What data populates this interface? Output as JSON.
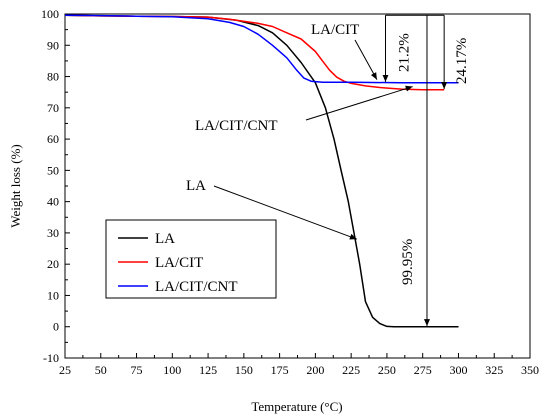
{
  "chart_data": {
    "type": "line",
    "title": "",
    "xlabel": "Temperature (°C)",
    "ylabel": "Weight loss (%)",
    "xlim": [
      25,
      350
    ],
    "ylim": [
      -10,
      100
    ],
    "xticks": [
      25,
      50,
      75,
      100,
      125,
      150,
      175,
      200,
      225,
      250,
      275,
      300,
      325,
      350
    ],
    "yticks": [
      -10,
      0,
      10,
      20,
      30,
      40,
      50,
      60,
      70,
      80,
      90,
      100
    ],
    "grid": false,
    "legend_position": "lower-left",
    "series": [
      {
        "name": "LA",
        "color": "#000000",
        "points": [
          [
            25,
            99.6
          ],
          [
            50,
            99.4
          ],
          [
            75,
            99.3
          ],
          [
            100,
            99.2
          ],
          [
            125,
            99.0
          ],
          [
            145,
            98.0
          ],
          [
            160,
            96.3
          ],
          [
            170,
            94.0
          ],
          [
            180,
            90.0
          ],
          [
            190,
            84.5
          ],
          [
            200,
            78.0
          ],
          [
            207,
            70.0
          ],
          [
            213,
            60.0
          ],
          [
            218,
            50.0
          ],
          [
            223,
            40.0
          ],
          [
            227,
            30.0
          ],
          [
            231,
            20.0
          ],
          [
            235,
            8.0
          ],
          [
            240,
            3.0
          ],
          [
            245,
            1.0
          ],
          [
            250,
            0.1
          ],
          [
            255,
            0.0
          ],
          [
            300,
            0.0
          ]
        ]
      },
      {
        "name": "LA/CIT",
        "color": "#ff0000",
        "points": [
          [
            25,
            99.6
          ],
          [
            50,
            99.4
          ],
          [
            75,
            99.3
          ],
          [
            100,
            99.2
          ],
          [
            125,
            99.0
          ],
          [
            140,
            98.3
          ],
          [
            160,
            97.0
          ],
          [
            170,
            96.0
          ],
          [
            180,
            94.0
          ],
          [
            190,
            92.0
          ],
          [
            200,
            88.0
          ],
          [
            205,
            85.0
          ],
          [
            210,
            82.0
          ],
          [
            215,
            79.8
          ],
          [
            220,
            78.5
          ],
          [
            225,
            77.8
          ],
          [
            235,
            77.0
          ],
          [
            245,
            76.5
          ],
          [
            260,
            76.0
          ],
          [
            275,
            75.8
          ],
          [
            290,
            75.8
          ]
        ]
      },
      {
        "name": "LA/CIT/CNT",
        "color": "#0000ff",
        "points": [
          [
            25,
            99.6
          ],
          [
            50,
            99.5
          ],
          [
            75,
            99.3
          ],
          [
            100,
            99.1
          ],
          [
            125,
            98.5
          ],
          [
            140,
            97.3
          ],
          [
            150,
            96.0
          ],
          [
            160,
            93.5
          ],
          [
            170,
            90.0
          ],
          [
            180,
            86.0
          ],
          [
            187,
            82.0
          ],
          [
            192,
            79.5
          ],
          [
            197,
            78.5
          ],
          [
            205,
            78.2
          ],
          [
            225,
            78.2
          ],
          [
            260,
            78.0
          ],
          [
            300,
            78.0
          ]
        ]
      }
    ],
    "annotations": {
      "label_la": "LA",
      "label_la_cit": "LA/CIT",
      "label_la_cit_cnt": "LA/CIT/CNT",
      "pct_la": "99.95%",
      "pct_la_cit": "24.17%",
      "pct_la_cit_cnt": "21.2%"
    }
  }
}
